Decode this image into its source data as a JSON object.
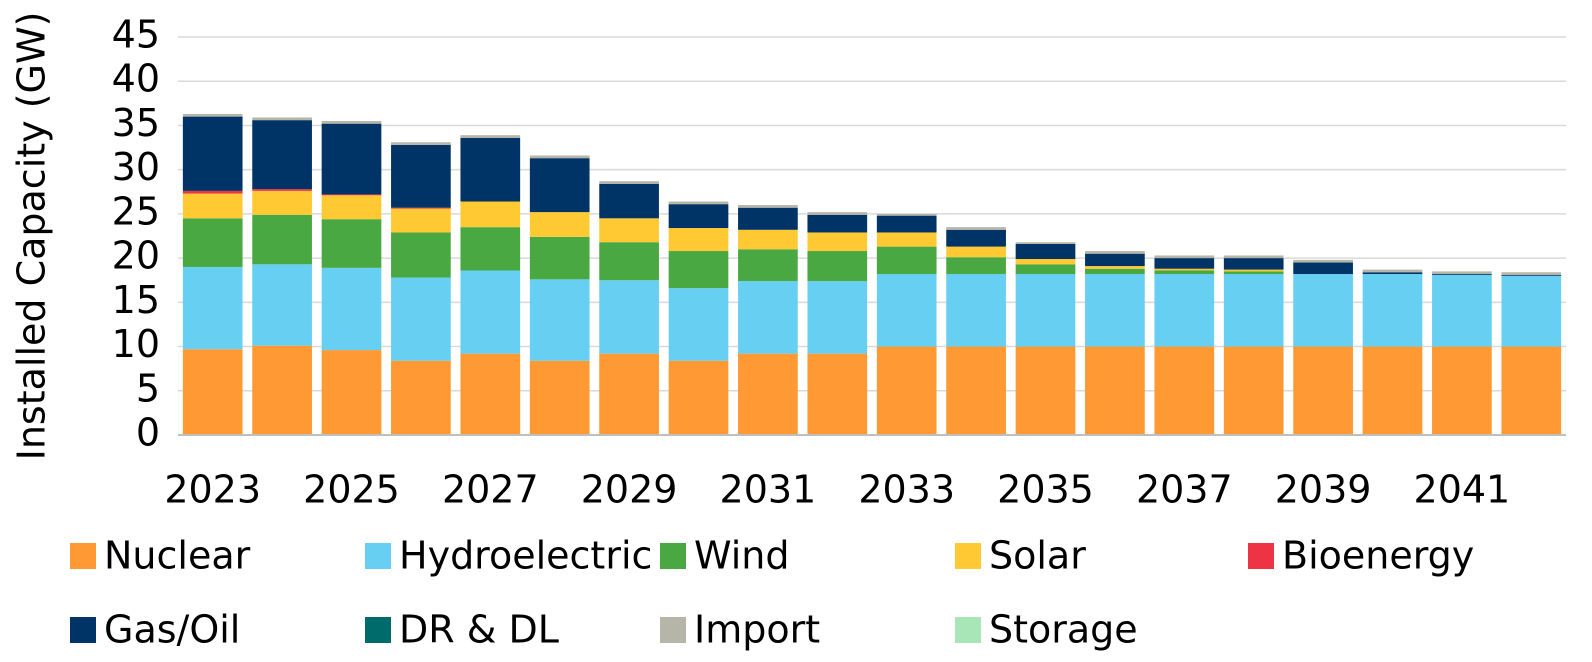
{
  "chart_data": {
    "type": "stacked_bar",
    "ylabel": "Installed Capacity (GW)",
    "categories": [
      "2023",
      null,
      "2025",
      null,
      "2027",
      null,
      "2029",
      null,
      "2031",
      null,
      "2033",
      null,
      "2035",
      null,
      "2037",
      null,
      "2039",
      null,
      "2041",
      null
    ],
    "ylim": [
      0,
      45
    ],
    "yticks": [
      0,
      5,
      10,
      15,
      20,
      25,
      30,
      35,
      40,
      45
    ],
    "grid": true,
    "series": [
      {
        "name": "Nuclear",
        "color": "#ff9933",
        "values": [
          9.7,
          10.1,
          9.6,
          8.4,
          9.2,
          8.4,
          9.2,
          8.4,
          9.2,
          9.2,
          10.0,
          10.0,
          10.0,
          10.0,
          10.0,
          10.0,
          10.0,
          10.0,
          10.0,
          10.0
        ]
      },
      {
        "name": "Hydroelectric",
        "color": "#66cff2",
        "values": [
          9.3,
          9.2,
          9.3,
          9.4,
          9.4,
          9.2,
          8.3,
          8.2,
          8.2,
          8.2,
          8.2,
          8.2,
          8.2,
          8.2,
          8.2,
          8.2,
          8.2,
          8.2,
          8.1,
          8.0
        ]
      },
      {
        "name": "Wind",
        "color": "#4aa843",
        "values": [
          5.5,
          5.6,
          5.5,
          5.1,
          4.9,
          4.8,
          4.3,
          4.2,
          3.6,
          3.4,
          3.1,
          1.9,
          1.1,
          0.6,
          0.4,
          0.3,
          0,
          0,
          0,
          0
        ]
      },
      {
        "name": "Solar",
        "color": "#ffc933",
        "values": [
          2.8,
          2.7,
          2.7,
          2.7,
          2.9,
          2.8,
          2.7,
          2.6,
          2.2,
          2.1,
          1.6,
          1.2,
          0.6,
          0.3,
          0.2,
          0.2,
          0,
          0,
          0,
          0
        ]
      },
      {
        "name": "Bioenergy",
        "color": "#ee3344",
        "values": [
          0.3,
          0.2,
          0.1,
          0.1,
          0,
          0,
          0,
          0,
          0,
          0,
          0,
          0,
          0,
          0,
          0,
          0,
          0,
          0,
          0,
          0
        ]
      },
      {
        "name": "Gas/Oil",
        "color": "#003366",
        "values": [
          8.4,
          7.8,
          8.0,
          7.1,
          7.2,
          6.1,
          3.9,
          2.7,
          2.5,
          2.0,
          1.9,
          1.9,
          1.7,
          1.4,
          1.2,
          1.3,
          1.3,
          0.2,
          0.1,
          0.1
        ]
      },
      {
        "name": "DR & DL",
        "color": "#006b6b",
        "values": [
          0,
          0,
          0,
          0,
          0,
          0,
          0,
          0,
          0,
          0,
          0,
          0,
          0,
          0,
          0,
          0,
          0,
          0,
          0,
          0
        ]
      },
      {
        "name": "Import",
        "color": "#b5b5a8",
        "values": [
          0.3,
          0.3,
          0.3,
          0.3,
          0.3,
          0.3,
          0.3,
          0.3,
          0.3,
          0.3,
          0.2,
          0.3,
          0.2,
          0.3,
          0.3,
          0.3,
          0.3,
          0.3,
          0.3,
          0.3
        ]
      },
      {
        "name": "Storage",
        "color": "#a8e6b8",
        "values": [
          0,
          0,
          0,
          0,
          0,
          0,
          0,
          0,
          0,
          0,
          0,
          0,
          0,
          0,
          0,
          0,
          0,
          0,
          0,
          0
        ]
      }
    ]
  }
}
